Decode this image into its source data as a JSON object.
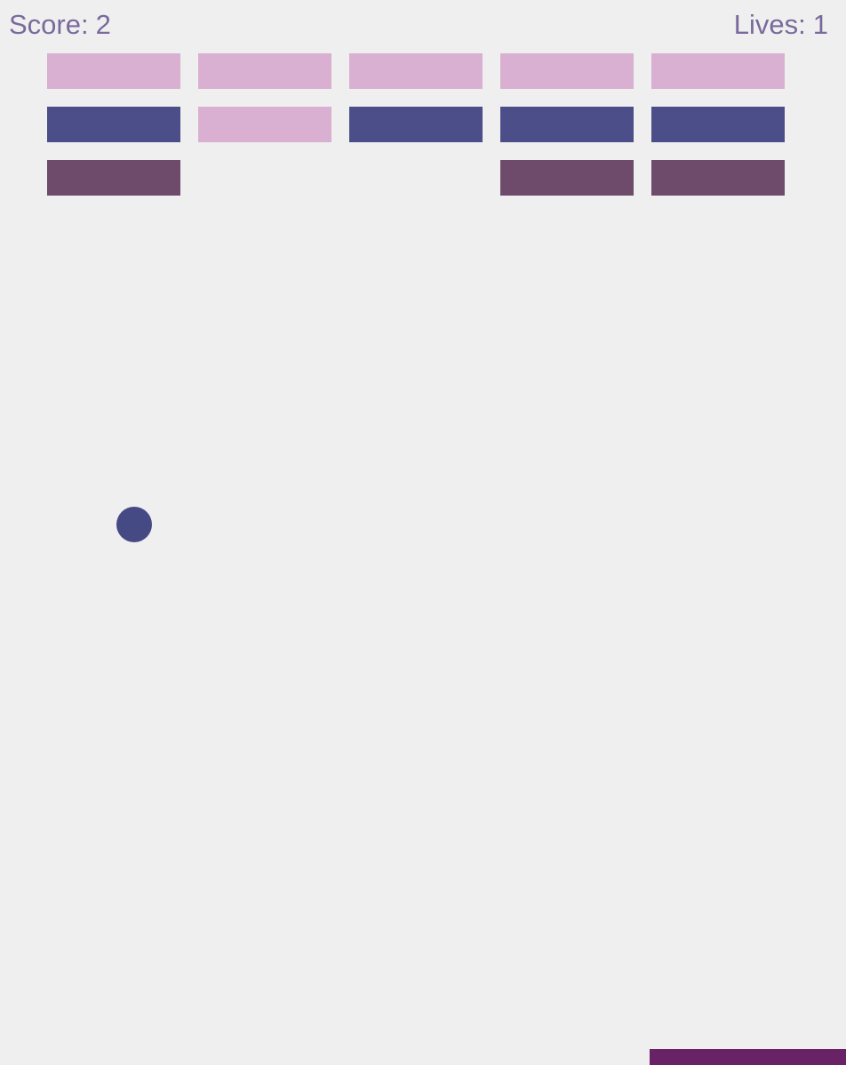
{
  "hud": {
    "score_label": "Score:",
    "score_value": "2",
    "lives_label": "Lives:",
    "lives_value": "1"
  },
  "colors": {
    "background": "#efefef",
    "hud_text": "#7a6a9c",
    "brick_light_pink": "#d9b0d1",
    "brick_navy": "#4b4e88",
    "brick_plum": "#6e4a6b",
    "ball": "#454a85",
    "paddle": "#6a2266"
  },
  "bricks": {
    "rows": [
      [
        "light_pink",
        "light_pink",
        "light_pink",
        "light_pink",
        "light_pink"
      ],
      [
        "navy",
        "light_pink",
        "navy",
        "navy",
        "navy"
      ],
      [
        "plum",
        null,
        null,
        "plum",
        "plum"
      ]
    ]
  }
}
